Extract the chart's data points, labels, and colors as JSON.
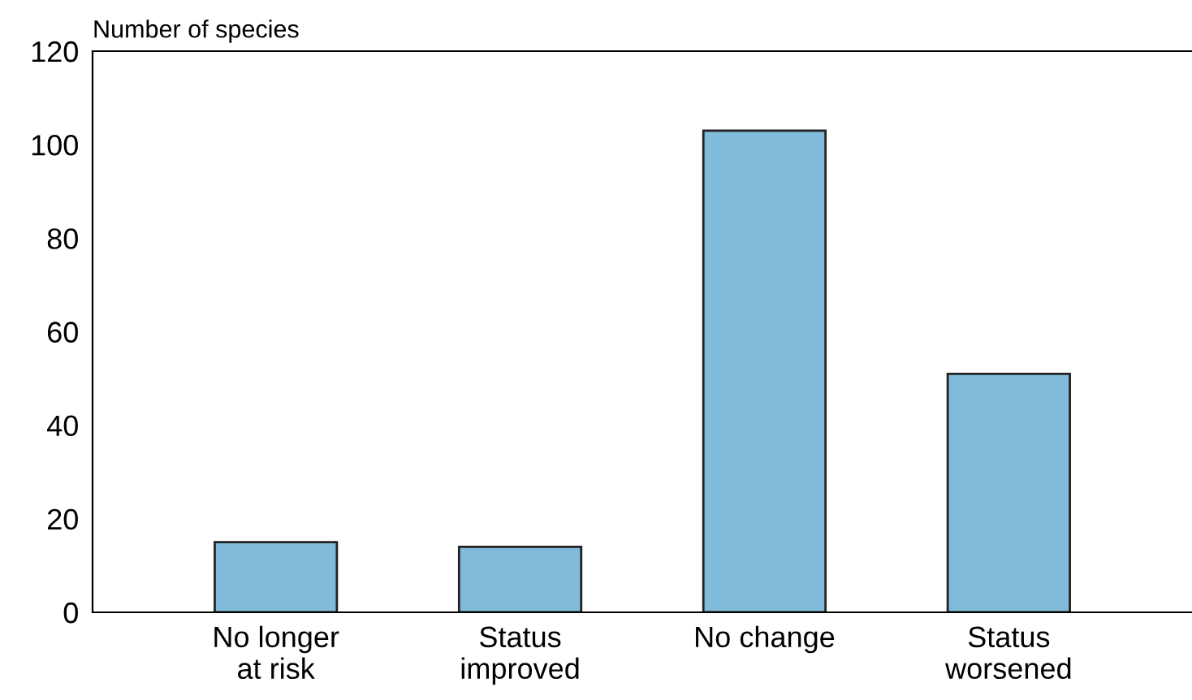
{
  "chart_data": {
    "type": "bar",
    "ylabel": "Number of species",
    "categories": [
      "No longer\nat risk",
      "Status\nimproved",
      "No change",
      "Status\nworsened"
    ],
    "values": [
      15,
      14,
      103,
      51
    ],
    "color": "#80bbd9",
    "ylim": [
      0,
      120
    ],
    "yticks": [
      0,
      20,
      40,
      60,
      80,
      100,
      120
    ],
    "grid": false
  }
}
